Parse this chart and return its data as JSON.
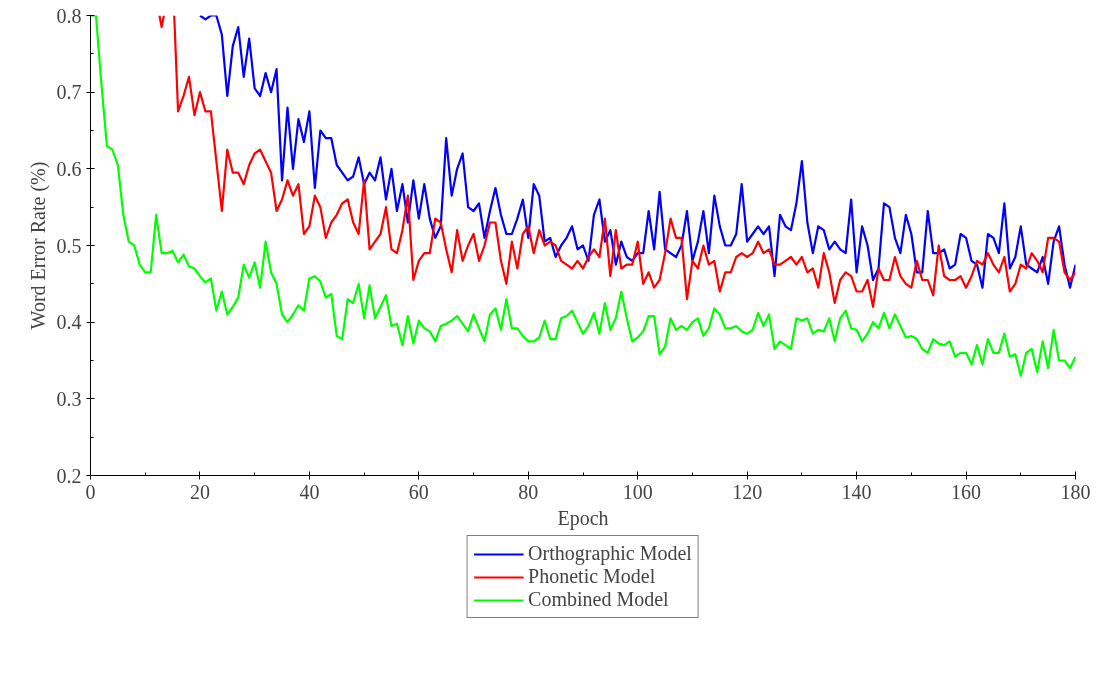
{
  "chart_data": {
    "type": "line",
    "xlabel": "Epoch",
    "ylabel": "Word Error Rate (%)",
    "xlim": [
      0,
      180
    ],
    "ylim": [
      0.2,
      0.8
    ],
    "xticks": [
      0,
      {
        "value": 10,
        "label": null
      },
      20,
      {
        "value": 30,
        "label": null
      },
      40,
      {
        "value": 50,
        "label": null
      },
      60,
      {
        "value": 70,
        "label": null
      },
      80,
      {
        "value": 90,
        "label": null
      },
      100,
      {
        "value": 110,
        "label": null
      },
      120,
      {
        "value": 130,
        "label": null
      },
      140,
      {
        "value": 150,
        "label": null
      },
      160,
      {
        "value": 170,
        "label": null
      },
      180
    ],
    "yticks": [
      0.2,
      {
        "value": 0.25,
        "label": null
      },
      0.3,
      {
        "value": 0.35,
        "label": null
      },
      0.4,
      {
        "value": 0.45,
        "label": null
      },
      0.5,
      {
        "value": 0.55,
        "label": null
      },
      0.6,
      {
        "value": 0.65,
        "label": null
      },
      0.7,
      {
        "value": 0.75,
        "label": null
      },
      0.8
    ],
    "grid": false,
    "legend": "bottom",
    "marker": "none",
    "line_style": "solid",
    "series": [
      {
        "name": "Orthographic Model",
        "color": "#0000ff",
        "x": [
          20,
          21,
          22,
          23,
          24,
          25,
          26,
          27,
          28,
          29,
          30,
          31,
          32,
          33,
          34,
          35,
          36,
          37,
          38,
          39,
          40,
          41,
          42,
          43,
          44,
          45,
          46,
          47,
          48,
          49,
          50,
          51,
          52,
          53,
          54,
          55,
          56,
          57,
          58,
          59,
          60,
          61,
          62,
          63,
          64,
          65,
          66,
          67,
          68,
          69,
          70,
          71,
          72,
          73,
          74,
          75,
          76,
          77,
          78,
          79,
          80,
          81,
          82,
          83,
          84,
          85,
          86,
          87,
          88,
          89,
          90,
          91,
          92,
          93,
          94,
          95,
          96,
          97,
          98,
          99,
          100,
          101,
          102,
          103,
          104,
          105,
          106,
          107,
          108,
          109,
          110,
          111,
          112,
          113,
          114,
          115,
          116,
          117,
          118,
          119,
          120,
          121,
          122,
          123,
          124,
          125,
          126,
          127,
          128,
          129,
          130,
          131,
          132,
          133,
          134,
          135,
          136,
          137,
          138,
          139,
          140,
          141,
          142,
          143,
          144,
          145,
          146,
          147,
          148,
          149,
          150,
          151,
          152,
          153,
          154,
          155,
          156,
          157,
          158,
          159,
          160,
          161,
          162,
          163,
          164,
          165,
          166,
          167,
          168,
          169,
          170,
          171,
          172,
          173,
          174,
          175,
          176,
          177,
          178,
          179,
          180
        ],
        "values": [
          0.8,
          0.795,
          0.8,
          0.8,
          0.775,
          0.695,
          0.76,
          0.785,
          0.72,
          0.77,
          0.705,
          0.695,
          0.725,
          0.7,
          0.73,
          0.585,
          0.68,
          0.6,
          0.665,
          0.635,
          0.675,
          0.575,
          0.65,
          0.64,
          0.64,
          0.605,
          0.595,
          0.585,
          0.59,
          0.615,
          0.58,
          0.595,
          0.585,
          0.615,
          0.56,
          0.6,
          0.545,
          0.58,
          0.53,
          0.585,
          0.535,
          0.58,
          0.535,
          0.51,
          0.525,
          0.64,
          0.565,
          0.6,
          0.62,
          0.55,
          0.545,
          0.555,
          0.51,
          0.545,
          0.575,
          0.54,
          0.515,
          0.515,
          0.535,
          0.56,
          0.51,
          0.58,
          0.565,
          0.505,
          0.51,
          0.485,
          0.5,
          0.51,
          0.525,
          0.495,
          0.5,
          0.48,
          0.54,
          0.56,
          0.505,
          0.52,
          0.475,
          0.505,
          0.485,
          0.48,
          0.49,
          0.49,
          0.545,
          0.495,
          0.57,
          0.495,
          0.49,
          0.485,
          0.5,
          0.545,
          0.48,
          0.505,
          0.545,
          0.49,
          0.565,
          0.525,
          0.5,
          0.5,
          0.515,
          0.58,
          0.505,
          0.515,
          0.525,
          0.515,
          0.525,
          0.46,
          0.54,
          0.525,
          0.52,
          0.555,
          0.61,
          0.53,
          0.49,
          0.525,
          0.52,
          0.495,
          0.505,
          0.495,
          0.49,
          0.56,
          0.465,
          0.525,
          0.5,
          0.455,
          0.47,
          0.555,
          0.55,
          0.51,
          0.49,
          0.54,
          0.515,
          0.465,
          0.465,
          0.545,
          0.49,
          0.49,
          0.495,
          0.47,
          0.475,
          0.515,
          0.51,
          0.48,
          0.475,
          0.445,
          0.515,
          0.51,
          0.49,
          0.555,
          0.47,
          0.485,
          0.525,
          0.475,
          0.47,
          0.465,
          0.485,
          0.45,
          0.505,
          0.525,
          0.475,
          0.445,
          0.475
        ]
      },
      {
        "name": "Phonetic Model",
        "color": "#ff0000",
        "x": [
          12.6,
          13,
          13.4,
          14,
          15.3,
          16,
          17,
          18,
          19,
          20,
          21,
          22,
          23,
          24,
          25,
          26,
          27,
          28,
          29,
          30,
          31,
          32,
          33,
          34,
          35,
          36,
          37,
          38,
          39,
          40,
          41,
          42,
          43,
          44,
          45,
          46,
          47,
          48,
          49,
          50,
          51,
          52,
          53,
          54,
          55,
          56,
          57,
          58,
          59,
          60,
          61,
          62,
          63,
          64,
          65,
          66,
          67,
          68,
          69,
          70,
          71,
          72,
          73,
          74,
          75,
          76,
          77,
          78,
          79,
          80,
          81,
          82,
          83,
          84,
          85,
          86,
          87,
          88,
          89,
          90,
          91,
          92,
          93,
          94,
          95,
          96,
          97,
          98,
          99,
          100,
          101,
          102,
          103,
          104,
          105,
          106,
          107,
          108,
          109,
          110,
          111,
          112,
          113,
          114,
          115,
          116,
          117,
          118,
          119,
          120,
          121,
          122,
          123,
          124,
          125,
          126,
          127,
          128,
          129,
          130,
          131,
          132,
          133,
          134,
          135,
          136,
          137,
          138,
          139,
          140,
          141,
          142,
          143,
          144,
          145,
          146,
          147,
          148,
          149,
          150,
          151,
          152,
          153,
          154,
          155,
          156,
          157,
          158,
          159,
          160,
          161,
          162,
          163,
          164,
          165,
          166,
          167,
          168,
          169,
          170,
          171,
          172,
          173,
          174,
          175,
          176,
          177,
          178,
          179,
          180
        ],
        "values": [
          0.8,
          0.785,
          0.8,
          null,
          0.8,
          0.675,
          0.695,
          0.72,
          0.67,
          0.7,
          0.675,
          0.675,
          0.61,
          0.545,
          0.625,
          0.595,
          0.595,
          0.58,
          0.605,
          0.62,
          0.625,
          0.61,
          0.595,
          0.545,
          0.56,
          0.585,
          0.565,
          0.58,
          0.515,
          0.525,
          0.565,
          0.55,
          0.51,
          0.53,
          0.54,
          0.555,
          0.56,
          0.53,
          0.515,
          0.585,
          0.495,
          0.505,
          0.515,
          0.55,
          0.495,
          0.49,
          0.52,
          0.565,
          0.455,
          0.48,
          0.49,
          0.49,
          0.535,
          0.53,
          0.495,
          0.465,
          0.52,
          0.48,
          0.5,
          0.515,
          0.48,
          0.5,
          0.53,
          0.53,
          0.48,
          0.45,
          0.505,
          0.47,
          0.515,
          0.525,
          0.49,
          0.52,
          0.5,
          0.505,
          0.5,
          0.48,
          0.475,
          0.47,
          0.48,
          0.47,
          0.485,
          0.495,
          0.485,
          0.535,
          0.46,
          0.52,
          0.47,
          0.475,
          0.475,
          0.505,
          0.45,
          0.465,
          0.445,
          0.455,
          0.49,
          0.535,
          0.51,
          0.51,
          0.43,
          0.48,
          0.47,
          0.5,
          0.475,
          0.48,
          0.44,
          0.465,
          0.465,
          0.485,
          0.49,
          0.485,
          0.49,
          0.505,
          0.49,
          0.495,
          0.475,
          0.475,
          0.48,
          0.485,
          0.475,
          0.485,
          0.465,
          0.47,
          0.445,
          0.49,
          0.465,
          0.425,
          0.455,
          0.465,
          0.46,
          0.44,
          0.44,
          0.455,
          0.42,
          0.47,
          0.455,
          0.455,
          0.485,
          0.46,
          0.45,
          0.445,
          0.48,
          0.455,
          0.455,
          0.435,
          0.5,
          0.46,
          0.455,
          0.455,
          0.46,
          0.445,
          0.46,
          0.48,
          0.475,
          0.49,
          0.475,
          0.465,
          0.485,
          0.44,
          0.45,
          0.475,
          0.47,
          0.49,
          0.48,
          0.465,
          0.51,
          0.51,
          0.505,
          0.465,
          0.455,
          0.465
        ]
      },
      {
        "name": "Combined Model",
        "color": "#00ff00",
        "x": [
          0,
          1,
          2,
          3,
          4,
          5,
          6,
          7,
          8,
          9,
          10,
          11,
          12,
          13,
          14,
          15,
          16,
          17,
          18,
          19,
          20,
          21,
          22,
          23,
          24,
          25,
          26,
          27,
          28,
          29,
          30,
          31,
          32,
          33,
          34,
          35,
          36,
          37,
          38,
          39,
          40,
          41,
          42,
          43,
          44,
          45,
          46,
          47,
          48,
          49,
          50,
          51,
          52,
          53,
          54,
          55,
          56,
          57,
          58,
          59,
          60,
          61,
          62,
          63,
          64,
          65,
          66,
          67,
          68,
          69,
          70,
          71,
          72,
          73,
          74,
          75,
          76,
          77,
          78,
          79,
          80,
          81,
          82,
          83,
          84,
          85,
          86,
          87,
          88,
          89,
          90,
          91,
          92,
          93,
          94,
          95,
          96,
          97,
          98,
          99,
          100,
          101,
          102,
          103,
          104,
          105,
          106,
          107,
          108,
          109,
          110,
          111,
          112,
          113,
          114,
          115,
          116,
          117,
          118,
          119,
          120,
          121,
          122,
          123,
          124,
          125,
          126,
          127,
          128,
          129,
          130,
          131,
          132,
          133,
          134,
          135,
          136,
          137,
          138,
          139,
          140,
          141,
          142,
          143,
          144,
          145,
          146,
          147,
          148,
          149,
          150,
          151,
          152,
          153,
          154,
          155,
          156,
          157,
          158,
          159,
          160,
          161,
          162,
          163,
          164,
          165,
          166,
          167,
          168,
          169,
          170,
          171,
          172,
          173,
          174,
          175,
          176,
          177,
          178,
          179,
          180
        ],
        "values": [
          0.8,
          0.8,
          0.71,
          0.63,
          0.625,
          0.605,
          0.54,
          0.505,
          0.5,
          0.475,
          0.465,
          0.465,
          0.54,
          0.49,
          0.49,
          0.493,
          0.478,
          0.488,
          0.473,
          0.47,
          0.46,
          0.452,
          0.457,
          0.415,
          0.44,
          0.41,
          0.42,
          0.432,
          0.475,
          0.458,
          0.478,
          0.445,
          0.505,
          0.465,
          0.45,
          0.41,
          0.4,
          0.41,
          0.422,
          0.415,
          0.457,
          0.46,
          0.453,
          0.432,
          0.437,
          0.382,
          0.378,
          0.43,
          0.425,
          0.45,
          0.405,
          0.448,
          0.405,
          0.42,
          0.435,
          0.395,
          0.398,
          0.37,
          0.408,
          0.372,
          0.402,
          0.392,
          0.388,
          0.375,
          0.395,
          0.398,
          0.402,
          0.408,
          0.398,
          0.388,
          0.41,
          0.392,
          0.375,
          0.41,
          0.418,
          0.39,
          0.43,
          0.392,
          0.392,
          0.382,
          0.375,
          0.375,
          0.38,
          0.402,
          0.378,
          0.378,
          0.405,
          0.408,
          0.415,
          0.4,
          0.385,
          0.395,
          0.412,
          0.385,
          0.425,
          0.39,
          0.405,
          0.44,
          0.405,
          0.375,
          0.38,
          0.388,
          0.408,
          0.408,
          0.358,
          0.368,
          0.405,
          0.39,
          0.395,
          0.39,
          0.4,
          0.405,
          0.382,
          0.392,
          0.418,
          0.41,
          0.392,
          0.392,
          0.395,
          0.388,
          0.385,
          0.39,
          0.412,
          0.395,
          0.41,
          0.365,
          0.375,
          0.37,
          0.365,
          0.405,
          0.402,
          0.405,
          0.385,
          0.39,
          0.388,
          0.405,
          0.375,
          0.405,
          0.415,
          0.392,
          0.39,
          0.375,
          0.385,
          0.4,
          0.392,
          0.412,
          0.392,
          0.41,
          0.395,
          0.38,
          0.382,
          0.378,
          0.365,
          0.36,
          0.378,
          0.372,
          0.37,
          0.375,
          0.355,
          0.36,
          0.36,
          0.345,
          0.37,
          0.345,
          0.378,
          0.36,
          0.36,
          0.385,
          0.355,
          0.358,
          0.33,
          0.36,
          0.365,
          0.335,
          0.375,
          0.34,
          0.39,
          0.35,
          0.35,
          0.34,
          0.355
        ]
      }
    ]
  }
}
